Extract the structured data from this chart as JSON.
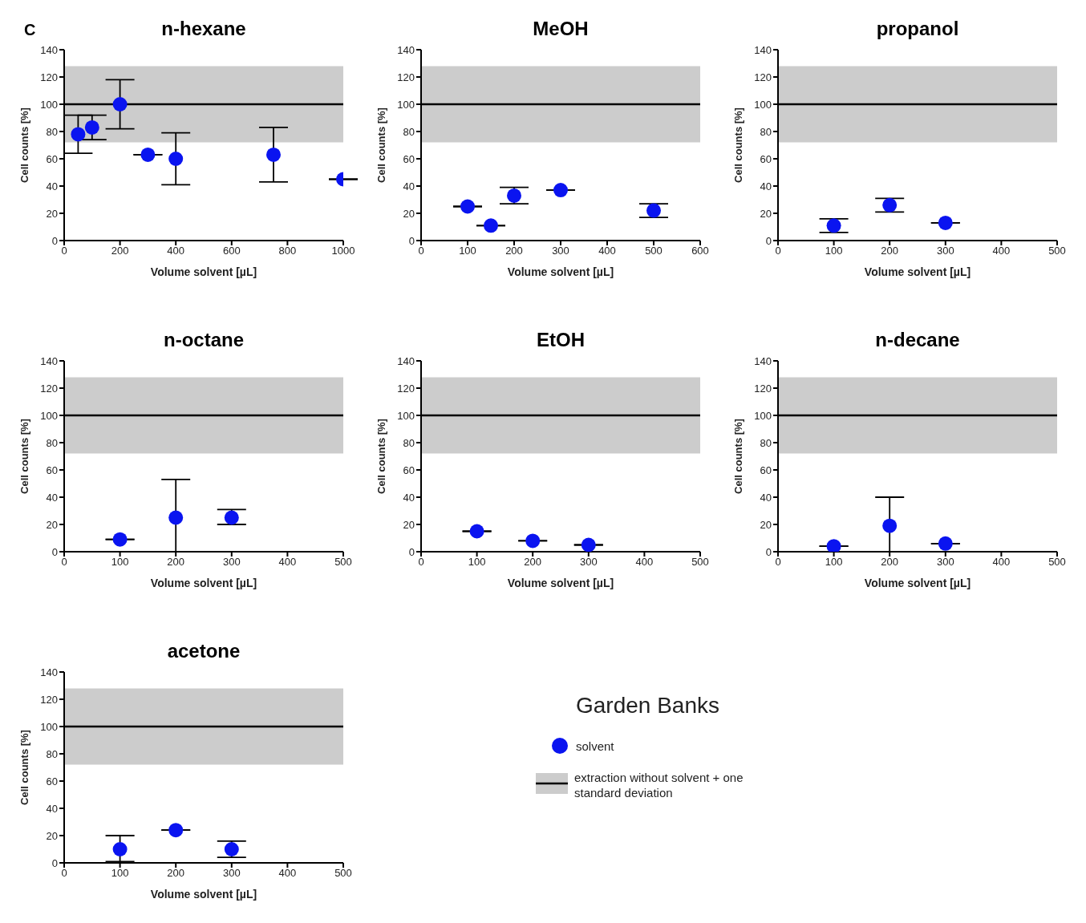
{
  "chart_data": [
    {
      "type": "scatter",
      "title": "n-hexane",
      "annotations": [
        "C"
      ],
      "xlabel": "Volume solvent [µL]",
      "ylabel": "Cell counts [%]",
      "xlim": [
        0,
        1000
      ],
      "xticks": [
        0,
        200,
        400,
        600,
        800,
        1000
      ],
      "ylim": [
        0,
        140
      ],
      "yticks": [
        0,
        20,
        40,
        60,
        80,
        100,
        120,
        140
      ],
      "marker": "circle",
      "x": [
        50,
        100,
        200,
        300,
        400,
        750,
        1000
      ],
      "series": [
        {
          "color": "#0a14f0",
          "values": [
            78,
            83,
            100,
            63,
            60,
            63,
            45
          ],
          "errors": [
            [
              64,
              92
            ],
            [
              74,
              92
            ],
            [
              82,
              118
            ],
            [
              63,
              63
            ],
            [
              41,
              79
            ],
            [
              43,
              83
            ],
            [
              45,
              45
            ]
          ]
        }
      ],
      "ref_lines": [
        {
          "axis": "y",
          "value": 100,
          "color": "#000000"
        }
      ],
      "bands": [
        {
          "axis": "y",
          "from": 72,
          "to": 128,
          "color": "#cccccc"
        }
      ]
    },
    {
      "type": "scatter",
      "title": "MeOH",
      "xlabel": "Volume solvent [µL]",
      "ylabel": "Cell counts [%]",
      "xlim": [
        0,
        600
      ],
      "xticks": [
        0,
        100,
        200,
        300,
        400,
        500,
        600
      ],
      "ylim": [
        0,
        140
      ],
      "yticks": [
        0,
        20,
        40,
        60,
        80,
        100,
        120,
        140
      ],
      "marker": "circle",
      "x": [
        100,
        150,
        200,
        300,
        500
      ],
      "series": [
        {
          "color": "#0a14f0",
          "values": [
            25,
            11,
            33,
            37,
            22
          ],
          "errors": [
            [
              25,
              25
            ],
            [
              11,
              11
            ],
            [
              27,
              39
            ],
            [
              37,
              37
            ],
            [
              17,
              27
            ]
          ]
        }
      ],
      "ref_lines": [
        {
          "axis": "y",
          "value": 100,
          "color": "#000000"
        }
      ],
      "bands": [
        {
          "axis": "y",
          "from": 72,
          "to": 128,
          "color": "#cccccc"
        }
      ]
    },
    {
      "type": "scatter",
      "title": "propanol",
      "xlabel": "Volume solvent [µL]",
      "ylabel": "Cell counts [%]",
      "xlim": [
        0,
        500
      ],
      "xticks": [
        0,
        100,
        200,
        300,
        400,
        500
      ],
      "ylim": [
        0,
        140
      ],
      "yticks": [
        0,
        20,
        40,
        60,
        80,
        100,
        120,
        140
      ],
      "marker": "circle",
      "x": [
        100,
        200,
        300
      ],
      "series": [
        {
          "color": "#0a14f0",
          "values": [
            11,
            26,
            13
          ],
          "errors": [
            [
              6,
              16
            ],
            [
              21,
              31
            ],
            [
              13,
              13
            ]
          ]
        }
      ],
      "ref_lines": [
        {
          "axis": "y",
          "value": 100,
          "color": "#000000"
        }
      ],
      "bands": [
        {
          "axis": "y",
          "from": 72,
          "to": 128,
          "color": "#cccccc"
        }
      ]
    },
    {
      "type": "scatter",
      "title": "n-octane",
      "xlabel": "Volume solvent [µL]",
      "ylabel": "Cell counts [%]",
      "xlim": [
        0,
        500
      ],
      "xticks": [
        0,
        100,
        200,
        300,
        400,
        500
      ],
      "ylim": [
        0,
        140
      ],
      "yticks": [
        0,
        20,
        40,
        60,
        80,
        100,
        120,
        140
      ],
      "marker": "circle",
      "x": [
        100,
        200,
        300
      ],
      "series": [
        {
          "color": "#0a14f0",
          "values": [
            9,
            25,
            25
          ],
          "errors": [
            [
              9,
              9
            ],
            [
              0,
              53
            ],
            [
              20,
              31
            ]
          ]
        }
      ],
      "ref_lines": [
        {
          "axis": "y",
          "value": 100,
          "color": "#000000"
        }
      ],
      "bands": [
        {
          "axis": "y",
          "from": 72,
          "to": 128,
          "color": "#cccccc"
        }
      ]
    },
    {
      "type": "scatter",
      "title": "EtOH",
      "xlabel": "Volume solvent [µL]",
      "ylabel": "Cell counts [%]",
      "xlim": [
        0,
        500
      ],
      "xticks": [
        0,
        100,
        200,
        300,
        400,
        500
      ],
      "ylim": [
        0,
        140
      ],
      "yticks": [
        0,
        20,
        40,
        60,
        80,
        100,
        120,
        140
      ],
      "marker": "circle",
      "x": [
        100,
        200,
        300
      ],
      "series": [
        {
          "color": "#0a14f0",
          "values": [
            15,
            8,
            5
          ],
          "errors": [
            [
              15,
              15
            ],
            [
              8,
              8
            ],
            [
              5,
              5
            ]
          ]
        }
      ],
      "ref_lines": [
        {
          "axis": "y",
          "value": 100,
          "color": "#000000"
        }
      ],
      "bands": [
        {
          "axis": "y",
          "from": 72,
          "to": 128,
          "color": "#cccccc"
        }
      ]
    },
    {
      "type": "scatter",
      "title": "n-decane",
      "xlabel": "Volume solvent [µL]",
      "ylabel": "Cell counts [%]",
      "xlim": [
        0,
        500
      ],
      "xticks": [
        0,
        100,
        200,
        300,
        400,
        500
      ],
      "ylim": [
        0,
        140
      ],
      "yticks": [
        0,
        20,
        40,
        60,
        80,
        100,
        120,
        140
      ],
      "marker": "circle",
      "x": [
        100,
        200,
        300
      ],
      "series": [
        {
          "color": "#0a14f0",
          "values": [
            4,
            19,
            6
          ],
          "errors": [
            [
              4,
              4
            ],
            [
              0,
              40
            ],
            [
              6,
              6
            ]
          ]
        }
      ],
      "ref_lines": [
        {
          "axis": "y",
          "value": 100,
          "color": "#000000"
        }
      ],
      "bands": [
        {
          "axis": "y",
          "from": 72,
          "to": 128,
          "color": "#cccccc"
        }
      ]
    },
    {
      "type": "scatter",
      "title": "acetone",
      "xlabel": "Volume solvent [µL]",
      "ylabel": "Cell counts [%]",
      "xlim": [
        0,
        500
      ],
      "xticks": [
        0,
        100,
        200,
        300,
        400,
        500
      ],
      "ylim": [
        0,
        140
      ],
      "yticks": [
        0,
        20,
        40,
        60,
        80,
        100,
        120,
        140
      ],
      "marker": "circle",
      "x": [
        100,
        200,
        300
      ],
      "legend": "right",
      "legend_title": "Garden Banks",
      "series": [
        {
          "name": "solvent",
          "color": "#0a14f0",
          "values": [
            10,
            24,
            10
          ],
          "errors": [
            [
              1,
              20
            ],
            [
              24,
              24
            ],
            [
              4,
              16
            ]
          ]
        }
      ],
      "ref_lines": [
        {
          "axis": "y",
          "value": 100,
          "color": "#000000"
        }
      ],
      "bands": [
        {
          "axis": "y",
          "from": 72,
          "to": 128,
          "color": "#cccccc",
          "label": "extraction without solvent + one standard deviation"
        }
      ]
    }
  ]
}
